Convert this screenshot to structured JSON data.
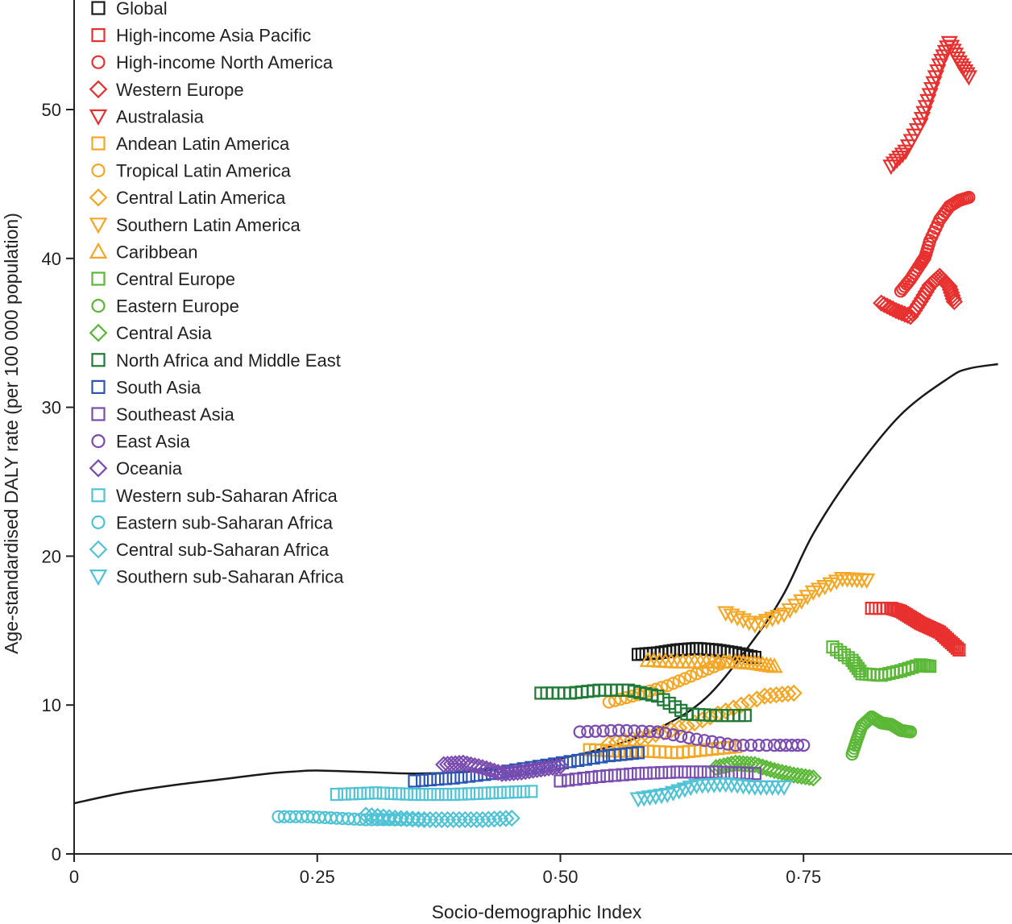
{
  "chart_data": {
    "type": "scatter",
    "xlabel": "Socio-demographic Index",
    "ylabel": "Age-standardised DALY rate (per 100 000 population)",
    "xlim": [
      0,
      0.98
    ],
    "ylim": [
      0,
      57
    ],
    "x_ticks": [
      {
        "value": 0,
        "label": "0"
      },
      {
        "value": 0.25,
        "label": "0·25"
      },
      {
        "value": 0.5,
        "label": "0·50"
      },
      {
        "value": 0.75,
        "label": "0·75"
      }
    ],
    "y_ticks": [
      {
        "value": 0,
        "label": "0"
      },
      {
        "value": 10,
        "label": "10"
      },
      {
        "value": 20,
        "label": "20"
      },
      {
        "value": 30,
        "label": "30"
      },
      {
        "value": 40,
        "label": "40"
      },
      {
        "value": 50,
        "label": "50"
      }
    ],
    "legend_position": "top-left",
    "expected_curve": [
      [
        0,
        3.4
      ],
      [
        0.05,
        4.1
      ],
      [
        0.1,
        4.6
      ],
      [
        0.15,
        5.0
      ],
      [
        0.2,
        5.4
      ],
      [
        0.23,
        5.55
      ],
      [
        0.25,
        5.6
      ],
      [
        0.3,
        5.5
      ],
      [
        0.35,
        5.4
      ],
      [
        0.4,
        5.5
      ],
      [
        0.45,
        5.8
      ],
      [
        0.5,
        6.4
      ],
      [
        0.55,
        7.2
      ],
      [
        0.6,
        8.4
      ],
      [
        0.65,
        10.5
      ],
      [
        0.7,
        14.5
      ],
      [
        0.73,
        17.5
      ],
      [
        0.76,
        21.5
      ],
      [
        0.8,
        25.5
      ],
      [
        0.85,
        29.5
      ],
      [
        0.9,
        32
      ],
      [
        0.92,
        32.6
      ],
      [
        0.95,
        32.9
      ]
    ],
    "series": [
      {
        "name": "Global",
        "color": "#1a1a1a",
        "marker": "square",
        "points": [
          [
            0.58,
            13.4
          ],
          [
            0.6,
            13.5
          ],
          [
            0.62,
            13.7
          ],
          [
            0.64,
            13.8
          ],
          [
            0.66,
            13.7
          ],
          [
            0.68,
            13.5
          ],
          [
            0.7,
            13.2
          ]
        ]
      },
      {
        "name": "High-income Asia Pacific",
        "color": "#e8302f",
        "marker": "square",
        "points": [
          [
            0.82,
            16.5
          ],
          [
            0.84,
            16.5
          ],
          [
            0.85,
            16.3
          ],
          [
            0.86,
            15.9
          ],
          [
            0.87,
            15.5
          ],
          [
            0.88,
            15.2
          ],
          [
            0.89,
            14.9
          ],
          [
            0.9,
            14.3
          ],
          [
            0.91,
            13.7
          ]
        ]
      },
      {
        "name": "High-income North America",
        "color": "#e8302f",
        "marker": "circle",
        "points": [
          [
            0.85,
            37.8
          ],
          [
            0.86,
            38.6
          ],
          [
            0.87,
            39.6
          ],
          [
            0.875,
            40.1
          ],
          [
            0.88,
            41.2
          ],
          [
            0.89,
            42.6
          ],
          [
            0.9,
            43.5
          ],
          [
            0.91,
            43.9
          ],
          [
            0.92,
            44.1
          ]
        ]
      },
      {
        "name": "Western Europe",
        "color": "#e8302f",
        "marker": "diamond",
        "points": [
          [
            0.83,
            37
          ],
          [
            0.845,
            36.5
          ],
          [
            0.86,
            36.1
          ],
          [
            0.87,
            37.1
          ],
          [
            0.88,
            38.2
          ],
          [
            0.89,
            38.8
          ],
          [
            0.9,
            38.1
          ],
          [
            0.905,
            37.1
          ]
        ]
      },
      {
        "name": "Australasia",
        "color": "#e8302f",
        "marker": "tri-down",
        "points": [
          [
            0.84,
            46.2
          ],
          [
            0.855,
            47.2
          ],
          [
            0.87,
            49
          ],
          [
            0.88,
            51
          ],
          [
            0.89,
            53
          ],
          [
            0.9,
            54.5
          ],
          [
            0.91,
            53.2
          ],
          [
            0.92,
            52.2
          ]
        ]
      },
      {
        "name": "Andean Latin America",
        "color": "#f5a623",
        "marker": "square",
        "points": [
          [
            0.53,
            7
          ],
          [
            0.56,
            6.9
          ],
          [
            0.59,
            6.9
          ],
          [
            0.62,
            6.8
          ],
          [
            0.65,
            7
          ],
          [
            0.68,
            7.2
          ]
        ]
      },
      {
        "name": "Tropical Latin America",
        "color": "#f5a623",
        "marker": "circle",
        "points": [
          [
            0.55,
            10.2
          ],
          [
            0.58,
            10.7
          ],
          [
            0.61,
            11.3
          ],
          [
            0.64,
            12.1
          ],
          [
            0.67,
            12.9
          ]
        ]
      },
      {
        "name": "Central Latin America",
        "color": "#f5a623",
        "marker": "diamond",
        "points": [
          [
            0.55,
            7.4
          ],
          [
            0.59,
            7.9
          ],
          [
            0.63,
            8.6
          ],
          [
            0.67,
            9.6
          ],
          [
            0.71,
            10.6
          ],
          [
            0.74,
            10.8
          ]
        ]
      },
      {
        "name": "Southern Latin America",
        "color": "#f5a623",
        "marker": "tri-down",
        "points": [
          [
            0.67,
            16.2
          ],
          [
            0.7,
            15.4
          ],
          [
            0.73,
            16.1
          ],
          [
            0.76,
            17.6
          ],
          [
            0.79,
            18.5
          ],
          [
            0.815,
            18.4
          ]
        ]
      },
      {
        "name": "Caribbean",
        "color": "#f5a623",
        "marker": "tri-up",
        "points": [
          [
            0.59,
            13
          ],
          [
            0.62,
            12.9
          ],
          [
            0.65,
            12.9
          ],
          [
            0.68,
            12.9
          ],
          [
            0.7,
            12.8
          ],
          [
            0.72,
            12.6
          ]
        ]
      },
      {
        "name": "Central Europe",
        "color": "#5ab836",
        "marker": "square",
        "points": [
          [
            0.78,
            13.9
          ],
          [
            0.8,
            13
          ],
          [
            0.81,
            12.1
          ],
          [
            0.83,
            12
          ],
          [
            0.85,
            12.3
          ],
          [
            0.87,
            12.7
          ],
          [
            0.88,
            12.6
          ]
        ]
      },
      {
        "name": "Eastern Europe",
        "color": "#5ab836",
        "marker": "circle",
        "points": [
          [
            0.8,
            6.7
          ],
          [
            0.805,
            7.7
          ],
          [
            0.81,
            8.6
          ],
          [
            0.82,
            9.2
          ],
          [
            0.83,
            8.8
          ],
          [
            0.84,
            8.7
          ],
          [
            0.85,
            8.3
          ],
          [
            0.86,
            8.2
          ]
        ]
      },
      {
        "name": "Central Asia",
        "color": "#5ab836",
        "marker": "diamond",
        "points": [
          [
            0.66,
            5.8
          ],
          [
            0.68,
            6.1
          ],
          [
            0.7,
            6
          ],
          [
            0.72,
            5.6
          ],
          [
            0.74,
            5.3
          ],
          [
            0.76,
            5.1
          ]
        ]
      },
      {
        "name": "North Africa and Middle East",
        "color": "#1e7a34",
        "marker": "square",
        "points": [
          [
            0.48,
            10.8
          ],
          [
            0.51,
            10.8
          ],
          [
            0.54,
            11
          ],
          [
            0.57,
            11
          ],
          [
            0.6,
            10.6
          ],
          [
            0.63,
            9.4
          ],
          [
            0.66,
            9.3
          ],
          [
            0.69,
            9.3
          ]
        ]
      },
      {
        "name": "South Asia",
        "color": "#2a55b5",
        "marker": "square",
        "points": [
          [
            0.35,
            4.9
          ],
          [
            0.39,
            5.1
          ],
          [
            0.43,
            5.4
          ],
          [
            0.47,
            5.8
          ],
          [
            0.51,
            6.2
          ],
          [
            0.55,
            6.6
          ],
          [
            0.58,
            6.8
          ]
        ]
      },
      {
        "name": "Southeast Asia",
        "color": "#7a4bb0",
        "marker": "square",
        "points": [
          [
            0.5,
            4.9
          ],
          [
            0.54,
            5.2
          ],
          [
            0.58,
            5.4
          ],
          [
            0.62,
            5.5
          ],
          [
            0.66,
            5.5
          ],
          [
            0.7,
            5.4
          ]
        ]
      },
      {
        "name": "East Asia",
        "color": "#7a4bb0",
        "marker": "circle",
        "points": [
          [
            0.52,
            8.2
          ],
          [
            0.56,
            8.3
          ],
          [
            0.6,
            8.2
          ],
          [
            0.64,
            7.7
          ],
          [
            0.68,
            7.3
          ],
          [
            0.72,
            7.3
          ],
          [
            0.75,
            7.3
          ]
        ]
      },
      {
        "name": "Oceania",
        "color": "#7a4bb0",
        "marker": "diamond",
        "points": [
          [
            0.38,
            6
          ],
          [
            0.4,
            6.1
          ],
          [
            0.42,
            5.8
          ],
          [
            0.44,
            5.4
          ],
          [
            0.46,
            5.5
          ],
          [
            0.48,
            5.7
          ],
          [
            0.5,
            5.9
          ]
        ]
      },
      {
        "name": "Western sub-Saharan Africa",
        "color": "#4fc3d6",
        "marker": "square",
        "points": [
          [
            0.27,
            4
          ],
          [
            0.31,
            4.1
          ],
          [
            0.35,
            4
          ],
          [
            0.39,
            4
          ],
          [
            0.43,
            4.1
          ],
          [
            0.47,
            4.2
          ]
        ]
      },
      {
        "name": "Eastern sub-Saharan Africa",
        "color": "#4fc3d6",
        "marker": "circle",
        "points": [
          [
            0.21,
            2.5
          ],
          [
            0.24,
            2.5
          ],
          [
            0.27,
            2.4
          ],
          [
            0.3,
            2.3
          ],
          [
            0.33,
            2.3
          ],
          [
            0.36,
            2.3
          ]
        ]
      },
      {
        "name": "Central sub-Saharan Africa",
        "color": "#4fc3d6",
        "marker": "diamond",
        "points": [
          [
            0.3,
            2.6
          ],
          [
            0.33,
            2.4
          ],
          [
            0.36,
            2.3
          ],
          [
            0.39,
            2.3
          ],
          [
            0.42,
            2.3
          ],
          [
            0.45,
            2.4
          ]
        ]
      },
      {
        "name": "Southern sub-Saharan Africa",
        "color": "#4fc3d6",
        "marker": "tri-down",
        "points": [
          [
            0.58,
            3.7
          ],
          [
            0.61,
            4
          ],
          [
            0.64,
            4.6
          ],
          [
            0.67,
            4.7
          ],
          [
            0.7,
            4.5
          ],
          [
            0.73,
            4.5
          ]
        ]
      }
    ]
  }
}
